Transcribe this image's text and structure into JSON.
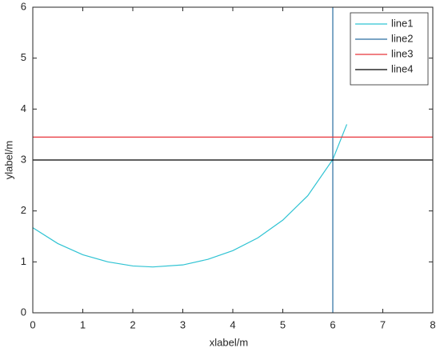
{
  "chart_data": {
    "type": "line",
    "xlabel": "xlabel/m",
    "ylabel": "ylabel/m",
    "xlim": [
      0,
      8
    ],
    "ylim": [
      0,
      6
    ],
    "xticks": [
      0,
      1,
      2,
      3,
      4,
      5,
      6,
      7,
      8
    ],
    "yticks": [
      0,
      1,
      2,
      3,
      4,
      5,
      6
    ],
    "legend": "upper right",
    "series": [
      {
        "name": "line1",
        "color": "#2fc3d3",
        "x": [
          0,
          0.5,
          1,
          1.5,
          2,
          2.4,
          3,
          3.5,
          4,
          4.5,
          5,
          5.5,
          6,
          6.28
        ],
        "values": [
          1.67,
          1.36,
          1.14,
          1.0,
          0.92,
          0.9,
          0.94,
          1.05,
          1.22,
          1.47,
          1.82,
          2.3,
          3.01,
          3.7
        ]
      },
      {
        "name": "line2",
        "color": "#2a6ea0",
        "x": [
          6,
          6
        ],
        "values": [
          0,
          6
        ]
      },
      {
        "name": "line3",
        "color": "#e8343a",
        "x": [
          0,
          8
        ],
        "values": [
          3.45,
          3.45
        ]
      },
      {
        "name": "line4",
        "color": "#000000",
        "x": [
          0,
          8
        ],
        "values": [
          3.0,
          3.0
        ]
      }
    ]
  }
}
